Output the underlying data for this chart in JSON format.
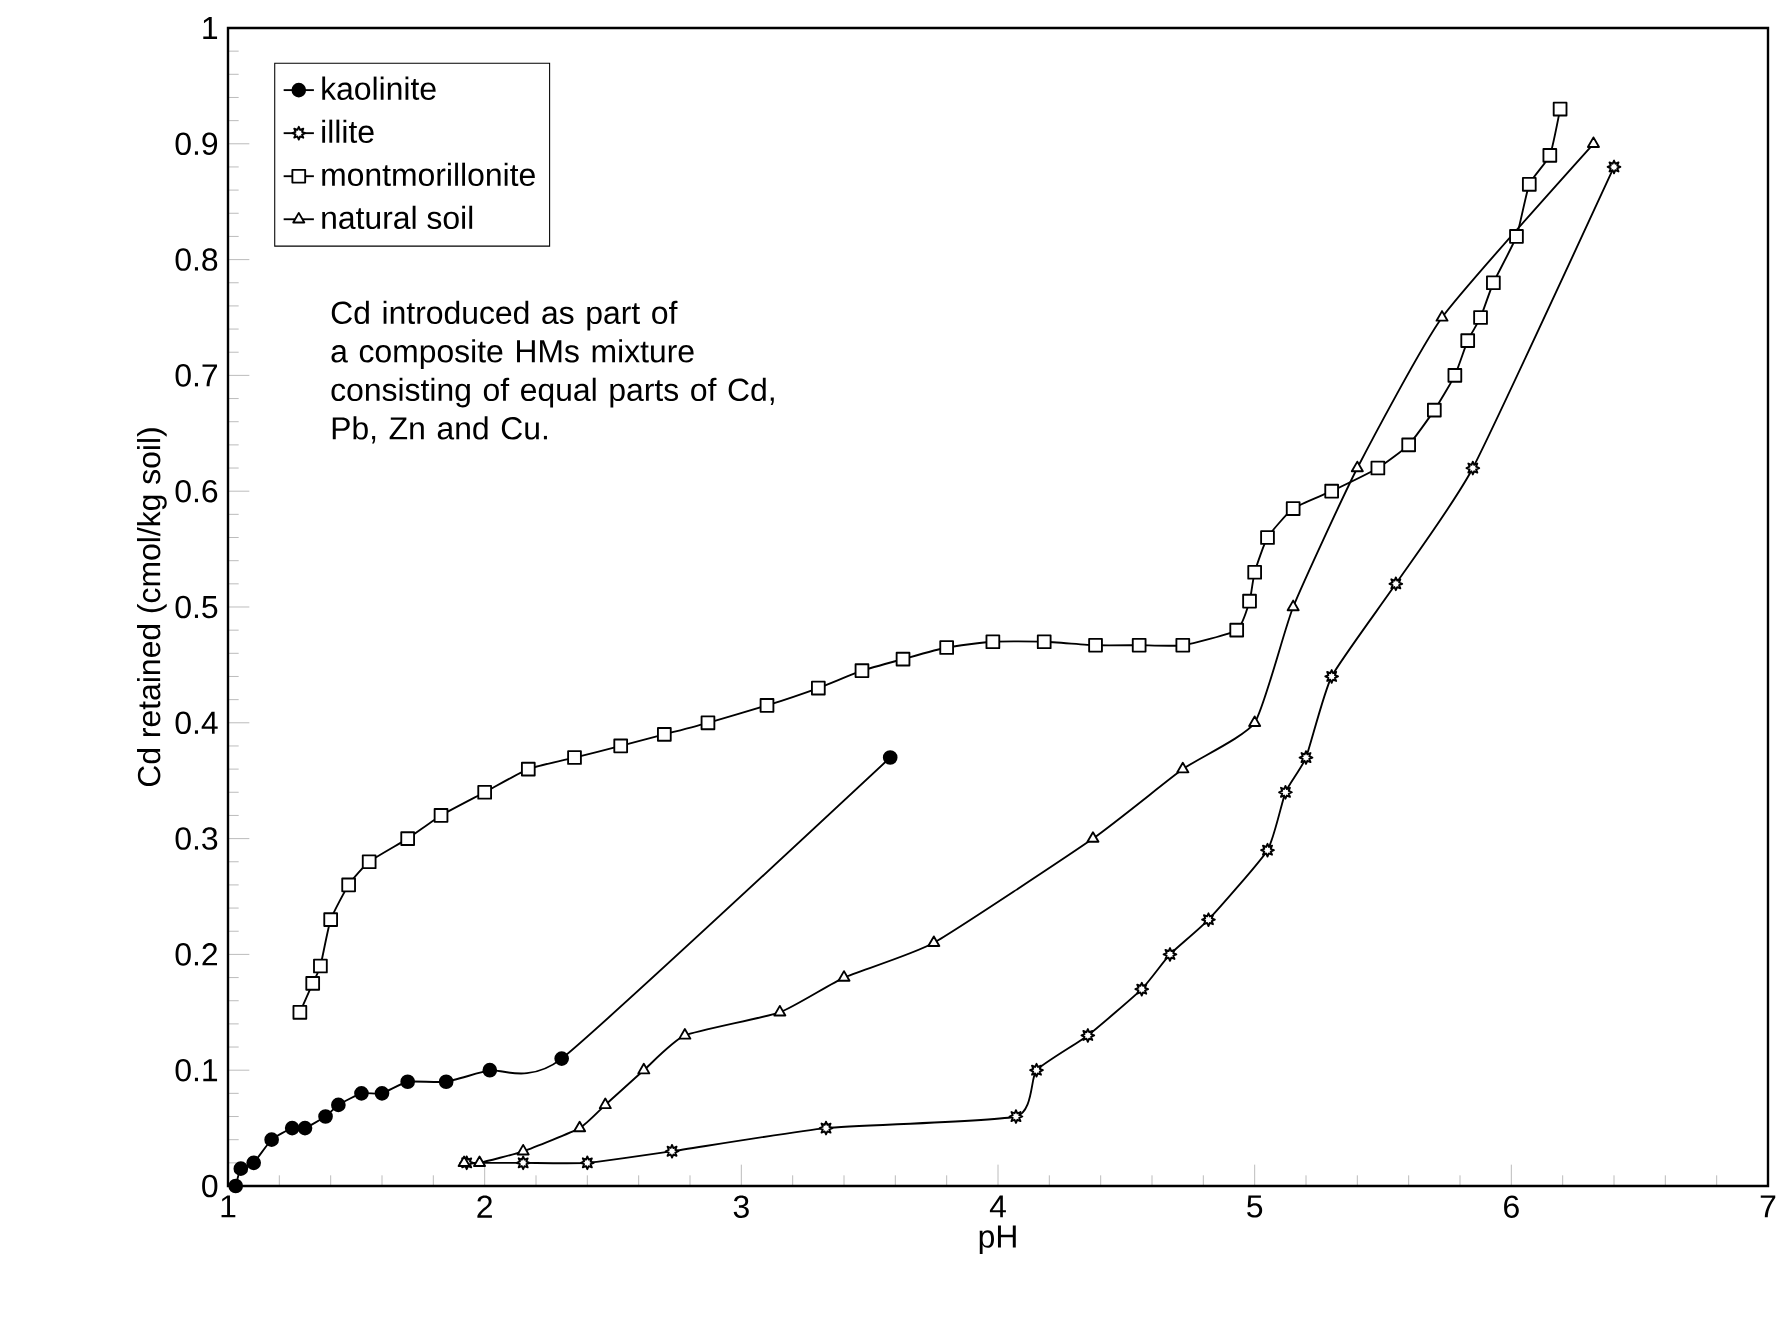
{
  "chart_data": {
    "type": "line",
    "xlabel": "pH",
    "ylabel": "Cd retained (cmol/kg soil)",
    "xlim": [
      1,
      7
    ],
    "ylim": [
      0,
      1
    ],
    "xticks": [
      1,
      2,
      3,
      4,
      5,
      6,
      7
    ],
    "yticks": [
      0,
      0.1,
      0.2,
      0.3,
      0.4,
      0.5,
      0.6,
      0.7,
      0.8,
      0.9,
      1
    ],
    "grid": false,
    "legend": "top left",
    "annotations": [
      "Cd introduced as part of a composite HMs mixture consisting of equal parts of Cd, Pb, Zn and Cu."
    ],
    "series": [
      {
        "name": "kaolinite",
        "color": "#000000",
        "marker": "circle",
        "x": [
          1.03,
          1.05,
          1.1,
          1.17,
          1.25,
          1.3,
          1.38,
          1.43,
          1.52,
          1.6,
          1.7,
          1.85,
          2.02,
          2.3,
          3.58
        ],
        "values": [
          0.0,
          0.015,
          0.02,
          0.04,
          0.05,
          0.05,
          0.06,
          0.07,
          0.08,
          0.08,
          0.09,
          0.09,
          0.1,
          0.11,
          0.37
        ]
      },
      {
        "name": "illite",
        "color": "#000000",
        "marker": "star",
        "x": [
          1.93,
          2.15,
          2.4,
          2.73,
          3.33,
          4.07,
          4.15,
          4.35,
          4.56,
          4.67,
          4.82,
          5.05,
          5.12,
          5.2,
          5.3,
          5.55,
          5.85,
          6.4
        ],
        "values": [
          0.02,
          0.02,
          0.02,
          0.03,
          0.05,
          0.06,
          0.1,
          0.13,
          0.17,
          0.2,
          0.23,
          0.29,
          0.34,
          0.37,
          0.44,
          0.52,
          0.62,
          0.88
        ]
      },
      {
        "name": "montmorillonite",
        "color": "#000000",
        "marker": "square",
        "x": [
          1.28,
          1.33,
          1.36,
          1.4,
          1.47,
          1.55,
          1.7,
          1.83,
          2.0,
          2.17,
          2.35,
          2.53,
          2.7,
          2.87,
          3.1,
          3.3,
          3.47,
          3.63,
          3.8,
          3.98,
          4.18,
          4.38,
          4.55,
          4.72,
          4.93,
          4.98,
          5.0,
          5.05,
          5.15,
          5.3,
          5.48,
          5.6,
          5.7,
          5.78,
          5.83,
          5.88,
          5.93,
          6.02,
          6.07,
          6.15,
          6.19
        ],
        "values": [
          0.15,
          0.175,
          0.19,
          0.23,
          0.26,
          0.28,
          0.3,
          0.32,
          0.34,
          0.36,
          0.37,
          0.38,
          0.39,
          0.4,
          0.415,
          0.43,
          0.445,
          0.455,
          0.465,
          0.47,
          0.47,
          0.467,
          0.467,
          0.467,
          0.48,
          0.505,
          0.53,
          0.56,
          0.585,
          0.6,
          0.62,
          0.64,
          0.67,
          0.7,
          0.73,
          0.75,
          0.78,
          0.82,
          0.865,
          0.89,
          0.93
        ]
      },
      {
        "name": "natural soil",
        "color": "#000000",
        "marker": "triangle",
        "x": [
          1.92,
          1.98,
          2.15,
          2.37,
          2.47,
          2.62,
          2.78,
          3.15,
          3.4,
          3.75,
          4.37,
          4.72,
          5.0,
          5.15,
          5.4,
          5.73,
          6.32
        ],
        "values": [
          0.02,
          0.02,
          0.03,
          0.05,
          0.07,
          0.1,
          0.13,
          0.15,
          0.18,
          0.21,
          0.3,
          0.36,
          0.4,
          0.5,
          0.62,
          0.75,
          0.9
        ]
      }
    ]
  }
}
